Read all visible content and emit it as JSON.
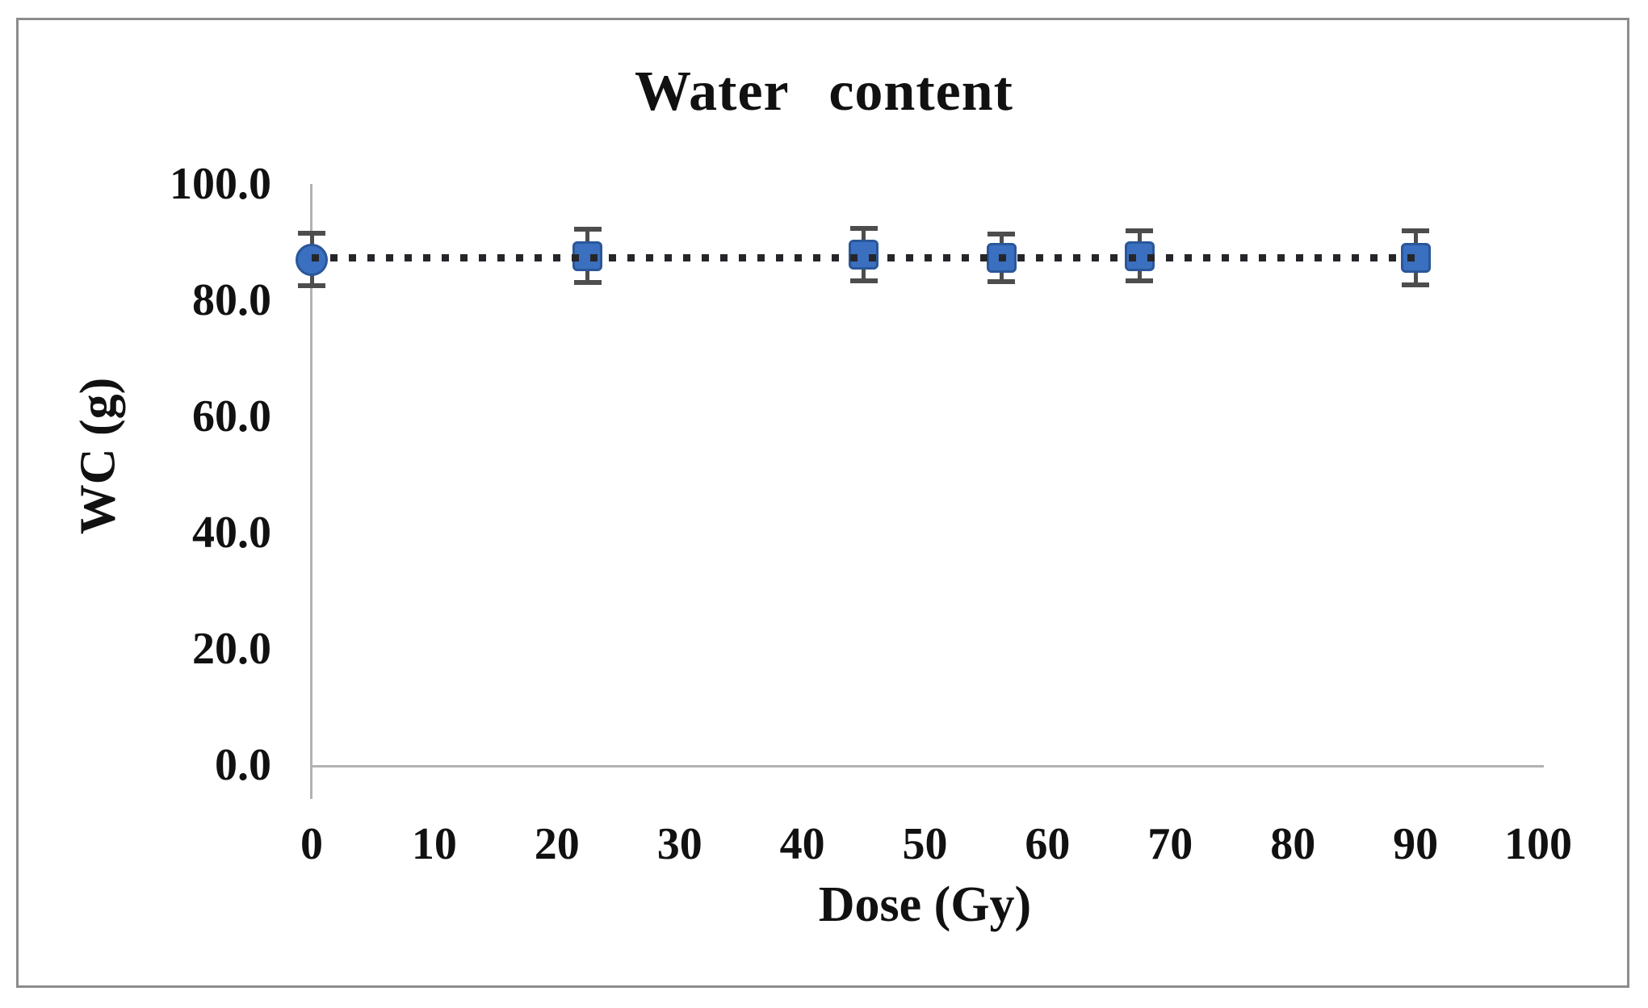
{
  "figure": {
    "background": "#ffffff",
    "border_color": "#8c8c8c",
    "axis_line_color": "#b2b2b2",
    "text_color": "#111111"
  },
  "chart_data": {
    "type": "scatter",
    "title": "Water content",
    "xlabel": "Dose (Gy)",
    "ylabel": "WC (g)",
    "xlim": [
      0,
      100
    ],
    "ylim": [
      0,
      100
    ],
    "x_tick_labels": [
      "0",
      "10",
      "20",
      "30",
      "40",
      "50",
      "60",
      "70",
      "80",
      "90",
      "100"
    ],
    "y_tick_labels": [
      "0.0",
      "20.0",
      "40.0",
      "60.0",
      "80.0",
      "100.0"
    ],
    "grid": false,
    "legend": "none",
    "series": [
      {
        "name": "Water content (WC)",
        "marker_color": "#3b6fc0",
        "marker_edge_color": "#2a5799",
        "error_bar_color": "#4d4d4d",
        "trendline": {
          "style": "dotted",
          "color": "#26262a",
          "y": 87.4,
          "x_start": 0,
          "x_end": 90
        },
        "points": [
          {
            "x": 0,
            "y": 87.0,
            "yerr": 4.5,
            "marker": "circle"
          },
          {
            "x": 22.5,
            "y": 87.6,
            "yerr": 4.6,
            "marker": "square"
          },
          {
            "x": 45,
            "y": 87.9,
            "yerr": 4.5,
            "marker": "square"
          },
          {
            "x": 56.25,
            "y": 87.3,
            "yerr": 4.1,
            "marker": "square"
          },
          {
            "x": 67.5,
            "y": 87.6,
            "yerr": 4.3,
            "marker": "square"
          },
          {
            "x": 90,
            "y": 87.3,
            "yerr": 4.6,
            "marker": "square"
          }
        ]
      }
    ]
  }
}
